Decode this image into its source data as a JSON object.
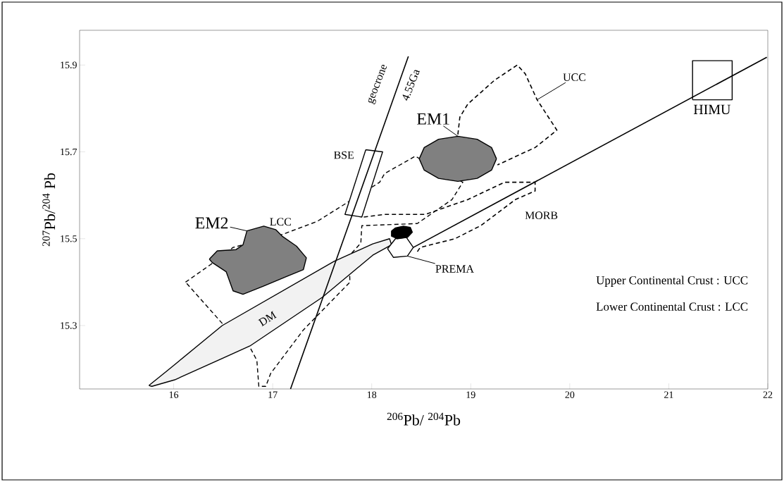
{
  "chart_data": {
    "type": "line",
    "xlabel": "$^{206}$Pb/ $^{204}$Pb",
    "ylabel": "$^{207}$Pb/$^{204}$ Pb",
    "xlim": [
      15.05,
      22
    ],
    "ylim": [
      15.154,
      15.98
    ],
    "xticks": [
      16,
      17,
      18,
      19,
      20,
      21,
      22
    ],
    "yticks": [
      15.3,
      15.5,
      15.7,
      15.9
    ],
    "series": [
      {
        "name": "LCC",
        "type": "area",
        "color": "#ffffff",
        "line_style": "dashed",
        "x": [
          16.12,
          16.37,
          16.6,
          17.1,
          17.45,
          17.73,
          18.08,
          18.13,
          18.44,
          18.92,
          18.81,
          18.46,
          17.9,
          17.89,
          17.77,
          17.78,
          17.31,
          16.98,
          16.93,
          16.86,
          16.84,
          16.77,
          16.51,
          16.12
        ],
        "values": [
          15.4,
          15.44,
          15.48,
          15.51,
          15.54,
          15.58,
          15.63,
          15.65,
          15.69,
          15.63,
          15.59,
          15.535,
          15.53,
          15.49,
          15.46,
          15.4,
          15.29,
          15.19,
          15.16,
          15.16,
          15.22,
          15.25,
          15.3,
          15.4
        ]
      },
      {
        "name": "DM",
        "type": "area",
        "color": "#f2f2f2",
        "line_style": "solid",
        "x": [
          15.75,
          15.94,
          16.49,
          17.62,
          18.01,
          18.18,
          18.2,
          18.01,
          17.5,
          16.77,
          16.01,
          15.78,
          15.75
        ],
        "values": [
          15.162,
          15.197,
          15.3,
          15.448,
          15.488,
          15.5,
          15.486,
          15.462,
          15.365,
          15.253,
          15.175,
          15.16,
          15.162
        ]
      },
      {
        "name": "BSE",
        "type": "area",
        "color": "#ffffff",
        "line_style": "solid",
        "x": [
          17.94,
          18.11,
          17.9,
          17.73,
          17.94
        ],
        "values": [
          15.705,
          15.7,
          15.55,
          15.556,
          15.705
        ]
      },
      {
        "name": "HIMU",
        "type": "area",
        "color": "#ffffff",
        "line_style": "solid",
        "x": [
          21.24,
          21.64,
          21.64,
          21.24,
          21.24
        ],
        "values": [
          15.82,
          15.82,
          15.91,
          15.91,
          15.82
        ]
      },
      {
        "name": "EM1",
        "type": "area",
        "color": "#808080",
        "line_style": "solid",
        "x": [
          19.26,
          19.21,
          19.065,
          18.87,
          18.675,
          18.53,
          18.48,
          18.53,
          18.675,
          18.87,
          19.065,
          19.21,
          19.26
        ],
        "values": [
          15.684,
          15.71,
          15.729,
          15.736,
          15.729,
          15.71,
          15.684,
          15.658,
          15.639,
          15.632,
          15.639,
          15.658,
          15.684
        ]
      },
      {
        "name": "EM2",
        "type": "area",
        "color": "#808080",
        "line_style": "solid",
        "x": [
          16.36,
          16.44,
          16.63,
          16.7,
          16.74,
          16.91,
          17.03,
          17.1,
          17.24,
          17.34,
          17.31,
          17.14,
          16.91,
          16.7,
          16.6,
          16.53,
          16.39,
          16.36
        ],
        "values": [
          15.453,
          15.472,
          15.475,
          15.486,
          15.518,
          15.529,
          15.521,
          15.505,
          15.483,
          15.456,
          15.429,
          15.413,
          15.391,
          15.372,
          15.38,
          15.424,
          15.445,
          15.453
        ]
      },
      {
        "name": "PREMA",
        "type": "area",
        "color": "#ffffff",
        "line_style": "solid",
        "x": [
          18.16,
          18.24,
          18.35,
          18.42,
          18.36,
          18.22,
          18.16
        ],
        "values": [
          15.477,
          15.5,
          15.503,
          15.48,
          15.46,
          15.457,
          15.477
        ]
      },
      {
        "type": "area",
        "color": "#000000",
        "line_style": "solid",
        "x": [
          18.2,
          18.24,
          18.32,
          18.39,
          18.41,
          18.36,
          18.26,
          18.2,
          18.2
        ],
        "values": [
          15.518,
          15.525,
          15.529,
          15.526,
          15.515,
          15.503,
          15.5,
          15.506,
          15.518
        ]
      },
      {
        "name": "geocrone",
        "color": "#000000",
        "line_style": "solid",
        "x": [
          17.18,
          18.37
        ],
        "values": [
          15.154,
          15.92
        ]
      },
      {
        "color": "#000000",
        "line_style": "solid",
        "x": [
          18.42,
          21.99
        ],
        "values": [
          15.48,
          15.918
        ]
      },
      {
        "name": "UCC",
        "color": "#000000",
        "line_style": "dashed",
        "x": [
          18.87,
          18.89,
          18.97,
          19.24,
          19.47,
          19.55,
          19.67,
          19.87,
          19.65,
          19.27
        ],
        "values": [
          15.74,
          15.78,
          15.81,
          15.865,
          15.9,
          15.88,
          15.82,
          15.75,
          15.71,
          15.67
        ]
      },
      {
        "name": "MORB",
        "color": "#000000",
        "line_style": "dashed",
        "x": [
          17.92,
          18.13,
          18.54,
          18.97,
          19.34,
          19.65,
          19.65,
          19.45,
          19.1,
          18.84,
          18.49,
          18.46
        ],
        "values": [
          15.55,
          15.556,
          15.556,
          15.59,
          15.63,
          15.63,
          15.61,
          15.59,
          15.53,
          15.5,
          15.48,
          15.47
        ]
      }
    ],
    "annotations": [
      "4.55Ga",
      "Upper Continental Crust : UCC",
      "Lower Continental Crust : LCC"
    ]
  }
}
